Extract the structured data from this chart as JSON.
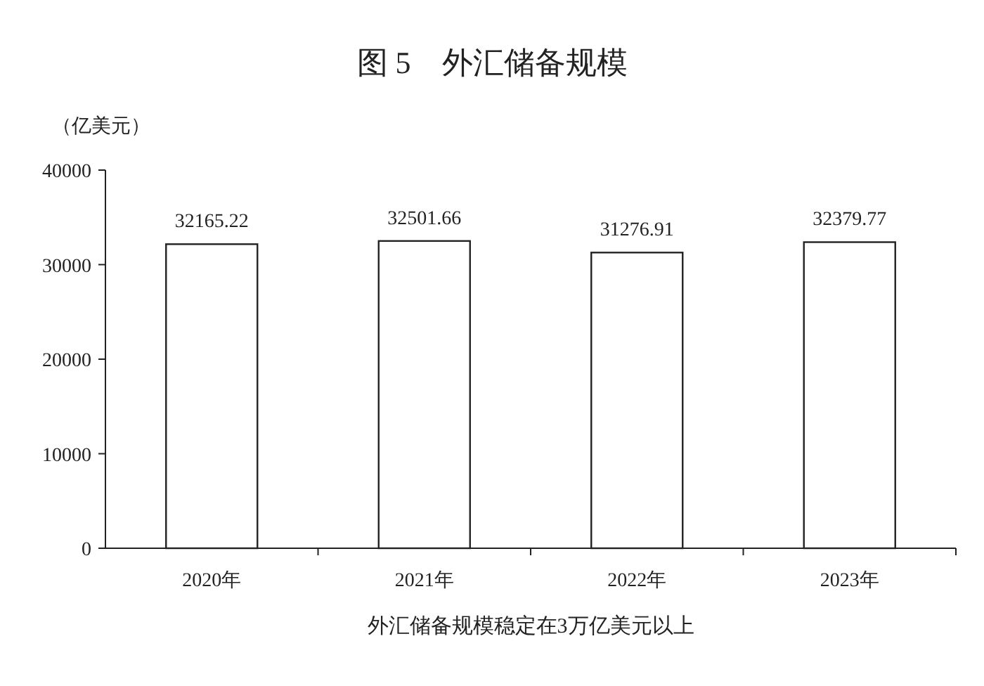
{
  "chart_data": {
    "type": "bar",
    "title": "图 5　外汇储备规模",
    "ylabel": "（亿美元）",
    "categories": [
      "2020年",
      "2021年",
      "2022年",
      "2023年"
    ],
    "values": [
      32165.22,
      32501.66,
      31276.91,
      32379.77
    ],
    "color": "#ffffff",
    "ylim": [
      0,
      40000
    ],
    "yticks": [
      0,
      10000,
      20000,
      30000,
      40000
    ],
    "data_labels": true,
    "annotations": [
      "外汇储备规模稳定在3万亿美元以上"
    ]
  }
}
